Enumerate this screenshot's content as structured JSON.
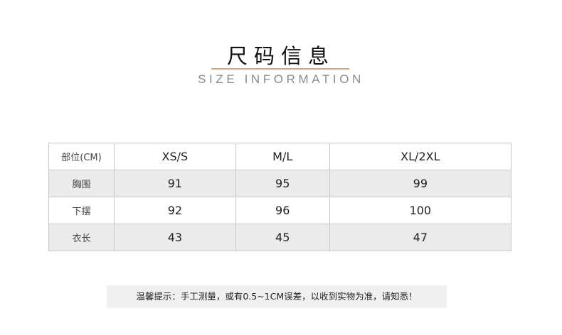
{
  "header": {
    "title": "尺码信息",
    "subtitle": "SIZE INFORMATION",
    "accent_color": "#c9a98b"
  },
  "table": {
    "columns": [
      "部位(CM)",
      "XS/S",
      "M/L",
      "XL/2XL"
    ],
    "rows": [
      {
        "label": "胸围",
        "values": [
          "91",
          "95",
          "99"
        ]
      },
      {
        "label": "下摆",
        "values": [
          "92",
          "96",
          "100"
        ]
      },
      {
        "label": "衣长",
        "values": [
          "43",
          "45",
          "47"
        ]
      }
    ]
  },
  "note": "温馨提示：手工测量，或有0.5~1CM误差，以收到实物为准，请知悉！"
}
